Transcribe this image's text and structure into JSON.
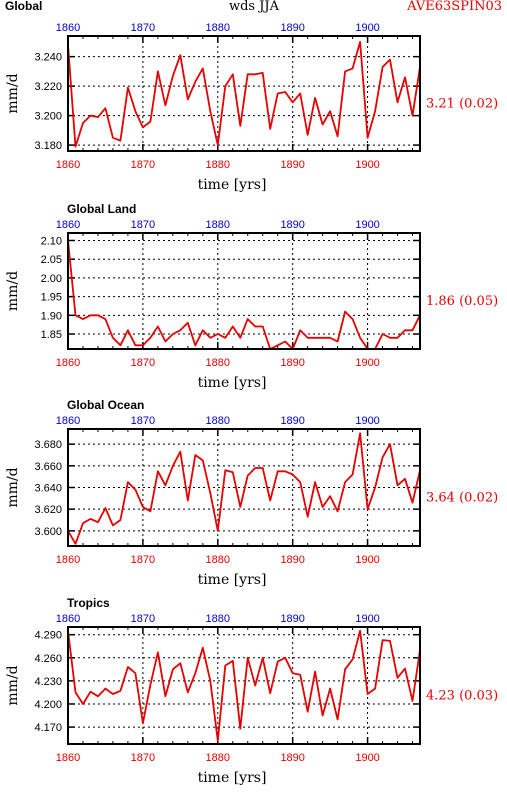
{
  "header": {
    "left": "Global",
    "center": "wds JJA",
    "right": "AVE63SPIN03"
  },
  "colors": {
    "line": "#e60000",
    "bottom_ticks": "#e60000",
    "top_ticks": "#0000cc",
    "stat": "#e60000"
  },
  "chart_data": [
    {
      "type": "line",
      "title": "Global",
      "xlabel": "time [yrs]",
      "ylabel": "mm/d",
      "stat_label": "3.21 (0.02)",
      "xlim": [
        1860,
        1907
      ],
      "ylim": [
        3.176,
        3.254
      ],
      "yticks": [
        3.18,
        3.2,
        3.22,
        3.24
      ],
      "ytick_labels": [
        "3.180",
        "3.200",
        "3.220",
        "3.240"
      ],
      "xticks": [
        1860,
        1870,
        1880,
        1890,
        1900
      ],
      "xtick_labels": [
        "1860",
        "1870",
        "1880",
        "1890",
        "1900"
      ],
      "grid": true,
      "x": [
        1860,
        1861,
        1862,
        1863,
        1864,
        1865,
        1866,
        1867,
        1868,
        1869,
        1870,
        1871,
        1872,
        1873,
        1874,
        1875,
        1876,
        1877,
        1878,
        1879,
        1880,
        1881,
        1882,
        1883,
        1884,
        1885,
        1886,
        1887,
        1888,
        1889,
        1890,
        1891,
        1892,
        1893,
        1894,
        1895,
        1896,
        1897,
        1898,
        1899,
        1900,
        1901,
        1902,
        1903,
        1904,
        1905,
        1906,
        1907
      ],
      "y": [
        3.248,
        3.179,
        3.195,
        3.2,
        3.199,
        3.205,
        3.185,
        3.183,
        3.219,
        3.203,
        3.192,
        3.196,
        3.23,
        3.207,
        3.227,
        3.241,
        3.211,
        3.223,
        3.232,
        3.203,
        3.18,
        3.22,
        3.228,
        3.193,
        3.228,
        3.228,
        3.229,
        3.191,
        3.215,
        3.216,
        3.209,
        3.215,
        3.187,
        3.212,
        3.194,
        3.203,
        3.186,
        3.23,
        3.232,
        3.25,
        3.185,
        3.203,
        3.233,
        3.238,
        3.209,
        3.226,
        3.2,
        3.233
      ]
    },
    {
      "type": "line",
      "title": "Global Land",
      "xlabel": "time [yrs]",
      "ylabel": "mm/d",
      "stat_label": "1.86 (0.05)",
      "xlim": [
        1860,
        1907
      ],
      "ylim": [
        1.81,
        2.12
      ],
      "yticks": [
        1.85,
        1.9,
        1.95,
        2.0,
        2.05,
        2.1
      ],
      "ytick_labels": [
        "1.85",
        "1.90",
        "1.95",
        "2.00",
        "2.05",
        "2.10"
      ],
      "xticks": [
        1860,
        1870,
        1880,
        1890,
        1900
      ],
      "xtick_labels": [
        "1860",
        "1870",
        "1880",
        "1890",
        "1900"
      ],
      "grid": true,
      "x": [
        1860,
        1861,
        1862,
        1863,
        1864,
        1865,
        1866,
        1867,
        1868,
        1869,
        1870,
        1871,
        1872,
        1873,
        1874,
        1875,
        1876,
        1877,
        1878,
        1879,
        1880,
        1881,
        1882,
        1883,
        1884,
        1885,
        1886,
        1887,
        1888,
        1889,
        1890,
        1891,
        1892,
        1893,
        1894,
        1895,
        1896,
        1897,
        1898,
        1899,
        1900,
        1901,
        1902,
        1903,
        1904,
        1905,
        1906,
        1907
      ],
      "y": [
        2.1,
        1.9,
        1.89,
        1.9,
        1.9,
        1.89,
        1.84,
        1.82,
        1.86,
        1.82,
        1.82,
        1.84,
        1.87,
        1.83,
        1.85,
        1.86,
        1.88,
        1.82,
        1.86,
        1.84,
        1.85,
        1.84,
        1.87,
        1.84,
        1.89,
        1.87,
        1.87,
        1.81,
        1.82,
        1.83,
        1.81,
        1.86,
        1.84,
        1.84,
        1.84,
        1.84,
        1.83,
        1.91,
        1.89,
        1.84,
        1.81,
        1.81,
        1.85,
        1.84,
        1.84,
        1.86,
        1.86,
        1.9
      ]
    },
    {
      "type": "line",
      "title": "Global Ocean",
      "xlabel": "time [yrs]",
      "ylabel": "mm/d",
      "stat_label": "3.64 (0.02)",
      "xlim": [
        1860,
        1907
      ],
      "ylim": [
        3.586,
        3.694
      ],
      "yticks": [
        3.6,
        3.62,
        3.64,
        3.66,
        3.68
      ],
      "ytick_labels": [
        "3.600",
        "3.620",
        "3.640",
        "3.660",
        "3.680"
      ],
      "xticks": [
        1860,
        1870,
        1880,
        1890,
        1900
      ],
      "xtick_labels": [
        "1860",
        "1870",
        "1880",
        "1890",
        "1900"
      ],
      "grid": true,
      "x": [
        1860,
        1861,
        1862,
        1863,
        1864,
        1865,
        1866,
        1867,
        1868,
        1869,
        1870,
        1871,
        1872,
        1873,
        1874,
        1875,
        1876,
        1877,
        1878,
        1879,
        1880,
        1881,
        1882,
        1883,
        1884,
        1885,
        1886,
        1887,
        1888,
        1889,
        1890,
        1891,
        1892,
        1893,
        1894,
        1895,
        1896,
        1897,
        1898,
        1899,
        1900,
        1901,
        1902,
        1903,
        1904,
        1905,
        1906,
        1907
      ],
      "y": [
        3.6,
        3.588,
        3.607,
        3.611,
        3.608,
        3.621,
        3.605,
        3.61,
        3.645,
        3.638,
        3.622,
        3.618,
        3.655,
        3.642,
        3.66,
        3.673,
        3.628,
        3.67,
        3.665,
        3.635,
        3.6,
        3.656,
        3.654,
        3.622,
        3.651,
        3.658,
        3.658,
        3.628,
        3.655,
        3.655,
        3.652,
        3.645,
        3.613,
        3.645,
        3.622,
        3.632,
        3.618,
        3.645,
        3.652,
        3.69,
        3.62,
        3.64,
        3.668,
        3.68,
        3.642,
        3.648,
        3.626,
        3.656
      ]
    },
    {
      "type": "line",
      "title": "Tropics",
      "xlabel": "time [yrs]",
      "ylabel": "mm/d",
      "stat_label": "4.23 (0.03)",
      "xlim": [
        1860,
        1907
      ],
      "ylim": [
        4.148,
        4.3
      ],
      "yticks": [
        4.17,
        4.2,
        4.23,
        4.26,
        4.29
      ],
      "ytick_labels": [
        "4.170",
        "4.200",
        "4.230",
        "4.260",
        "4.290"
      ],
      "xticks": [
        1860,
        1870,
        1880,
        1890,
        1900
      ],
      "xtick_labels": [
        "1860",
        "1870",
        "1880",
        "1890",
        "1900"
      ],
      "grid": true,
      "x": [
        1860,
        1861,
        1862,
        1863,
        1864,
        1865,
        1866,
        1867,
        1868,
        1869,
        1870,
        1871,
        1872,
        1873,
        1874,
        1875,
        1876,
        1877,
        1878,
        1879,
        1880,
        1881,
        1882,
        1883,
        1884,
        1885,
        1886,
        1887,
        1888,
        1889,
        1890,
        1891,
        1892,
        1893,
        1894,
        1895,
        1896,
        1897,
        1898,
        1899,
        1900,
        1901,
        1902,
        1903,
        1904,
        1905,
        1906,
        1907
      ],
      "y": [
        4.295,
        4.215,
        4.2,
        4.216,
        4.21,
        4.22,
        4.213,
        4.217,
        4.248,
        4.24,
        4.175,
        4.225,
        4.267,
        4.21,
        4.245,
        4.253,
        4.215,
        4.24,
        4.273,
        4.23,
        4.152,
        4.25,
        4.256,
        4.168,
        4.26,
        4.224,
        4.26,
        4.214,
        4.255,
        4.26,
        4.24,
        4.238,
        4.19,
        4.242,
        4.185,
        4.22,
        4.18,
        4.245,
        4.258,
        4.295,
        4.213,
        4.22,
        4.283,
        4.282,
        4.234,
        4.246,
        4.204,
        4.27
      ]
    }
  ]
}
